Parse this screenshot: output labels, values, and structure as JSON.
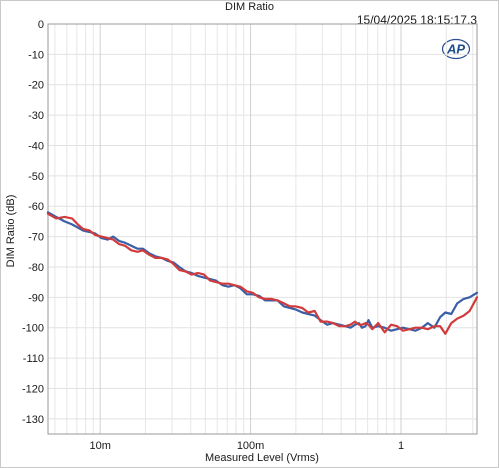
{
  "header": {
    "title": "DIM Ratio",
    "timestamp": "15/04/2025 18:15:17.3",
    "logo_text": "AP"
  },
  "chart_data": {
    "type": "line",
    "title": "DIM Ratio",
    "xlabel": "Measured Level (Vrms)",
    "ylabel": "DIM Ratio (dB)",
    "xscale": "log",
    "xlim": [
      0.0045,
      3.2
    ],
    "ylim": [
      -135,
      0
    ],
    "grid": true,
    "y_ticks": [
      0,
      -10,
      -20,
      -30,
      -40,
      -50,
      -60,
      -70,
      -80,
      -90,
      -100,
      -110,
      -120,
      -130
    ],
    "y_tick_labels": [
      "0",
      "-10",
      "-20",
      "-30",
      "-40",
      "-50",
      "-60",
      "-70",
      "-80",
      "-90",
      "-100",
      "-110",
      "-120",
      "-130"
    ],
    "x_ticks": [
      0.01,
      0.1,
      1
    ],
    "x_tick_labels": [
      "10m",
      "100m",
      "1"
    ],
    "series": [
      {
        "color": "#3a5fa6",
        "x": [
          0.0045,
          0.0051,
          0.0058,
          0.0065,
          0.0071,
          0.0077,
          0.0085,
          0.0093,
          0.0102,
          0.0112,
          0.0122,
          0.0134,
          0.0146,
          0.0161,
          0.0177,
          0.0192,
          0.0212,
          0.0233,
          0.0256,
          0.0281,
          0.0307,
          0.0336,
          0.0371,
          0.0406,
          0.0449,
          0.0491,
          0.0538,
          0.0589,
          0.0651,
          0.0712,
          0.078,
          0.0854,
          0.0943,
          0.1033,
          0.114,
          0.1248,
          0.1379,
          0.151,
          0.1667,
          0.1825,
          0.1998,
          0.2206,
          0.2416,
          0.2667,
          0.292,
          0.3225,
          0.3531,
          0.3899,
          0.4269,
          0.4613,
          0.4946,
          0.5252,
          0.5505,
          0.58,
          0.6076,
          0.6439,
          0.7053,
          0.7786,
          0.8596,
          0.9414,
          1.0309,
          1.1385,
          1.2467,
          1.3765,
          1.5073,
          1.6643,
          1.8224,
          1.971,
          2.1596,
          2.3647,
          2.6102,
          2.8594,
          3.2
        ],
        "y": [
          -62,
          -63.5,
          -65,
          -66,
          -67,
          -68,
          -68.5,
          -69,
          -70.5,
          -71,
          -70,
          -71.5,
          -72,
          -73,
          -74,
          -74,
          -75.5,
          -76.5,
          -77,
          -78,
          -78.5,
          -80,
          -81.5,
          -82,
          -83,
          -83.5,
          -84,
          -84.5,
          -86,
          -86.5,
          -86,
          -87,
          -89,
          -89,
          -89.5,
          -91,
          -91,
          -91,
          -93,
          -93.5,
          -94,
          -95,
          -95.5,
          -96,
          -97.5,
          -99,
          -98.5,
          -99,
          -99.5,
          -100,
          -99,
          -98.5,
          -100,
          -99.5,
          -97.5,
          -100,
          -99.5,
          -100,
          -101,
          -100.5,
          -100,
          -100.5,
          -101,
          -100,
          -98.5,
          -100,
          -96.5,
          -95,
          -95.5,
          -92,
          -90.5,
          -90,
          -88.5
        ]
      },
      {
        "color": "#d13b3b",
        "x": [
          0.0045,
          0.0051,
          0.0058,
          0.0065,
          0.0071,
          0.0077,
          0.0085,
          0.0093,
          0.0102,
          0.0112,
          0.0122,
          0.0134,
          0.0146,
          0.0161,
          0.0177,
          0.0192,
          0.0212,
          0.0233,
          0.0256,
          0.0281,
          0.0307,
          0.0336,
          0.0371,
          0.0406,
          0.0449,
          0.0491,
          0.0538,
          0.0589,
          0.0651,
          0.0712,
          0.078,
          0.0854,
          0.0943,
          0.1033,
          0.114,
          0.1248,
          0.1379,
          0.151,
          0.1667,
          0.1825,
          0.1998,
          0.2206,
          0.2416,
          0.2667,
          0.292,
          0.3225,
          0.3531,
          0.3899,
          0.4269,
          0.4613,
          0.4946,
          0.5252,
          0.5505,
          0.58,
          0.6076,
          0.6439,
          0.7053,
          0.7786,
          0.8596,
          0.9414,
          1.0309,
          1.1385,
          1.2467,
          1.3765,
          1.5073,
          1.6643,
          1.8224,
          1.971,
          2.1596,
          2.3647,
          2.6102,
          2.8594,
          3.2
        ],
        "y": [
          -62.5,
          -64,
          -63.5,
          -64,
          -66,
          -67.5,
          -68,
          -69.5,
          -70,
          -70.5,
          -71,
          -72.5,
          -73,
          -74.5,
          -75,
          -74.5,
          -76,
          -77,
          -77,
          -77.5,
          -79,
          -81,
          -81.5,
          -82.5,
          -82,
          -82.5,
          -84.5,
          -85,
          -85.5,
          -85.5,
          -86,
          -86.5,
          -88,
          -88.5,
          -90,
          -90.5,
          -90.5,
          -91,
          -92,
          -93,
          -93,
          -93.5,
          -95,
          -94.5,
          -98,
          -98,
          -98.5,
          -99.5,
          -99.5,
          -99,
          -98,
          -99,
          -99,
          -98.5,
          -99,
          -100.5,
          -98.5,
          -101.5,
          -99,
          -99.5,
          -101,
          -100.5,
          -100,
          -100,
          -100.5,
          -99.5,
          -99.5,
          -102,
          -98.5,
          -97,
          -96,
          -94.5,
          -90
        ]
      }
    ]
  }
}
